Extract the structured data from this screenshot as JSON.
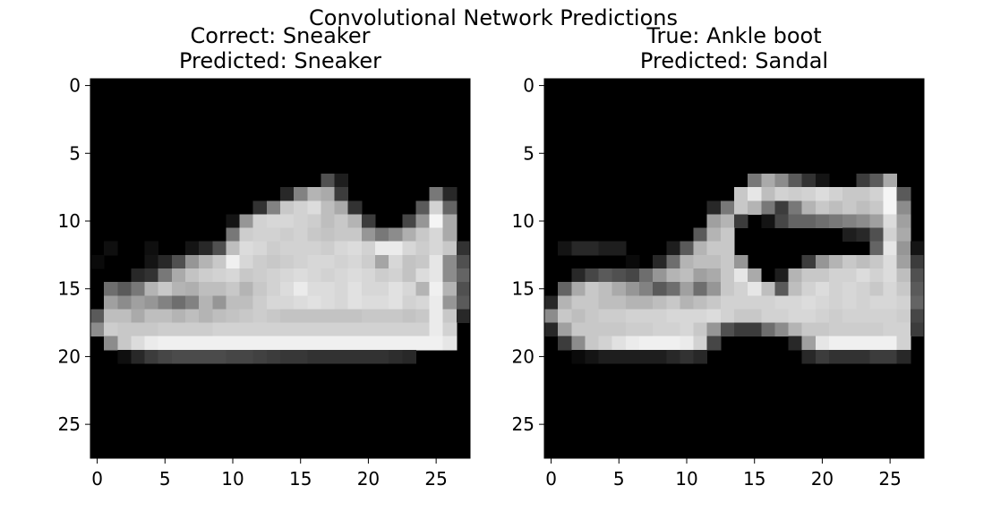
{
  "figure": {
    "suptitle": "Convolutional Network Predictions"
  },
  "chart_data": [
    {
      "type": "heatmap",
      "title_lines": [
        "Correct: Sneaker",
        "Predicted: Sneaker"
      ],
      "colormap": "gray",
      "image_shape": [
        28,
        28
      ],
      "xlim": [
        -0.5,
        27.5
      ],
      "ylim": [
        27.5,
        -0.5
      ],
      "xticks": [
        0,
        5,
        10,
        15,
        20,
        25
      ],
      "yticks": [
        0,
        5,
        10,
        15,
        20,
        25
      ],
      "xtick_labels": [
        "0",
        "5",
        "10",
        "15",
        "20",
        "25"
      ],
      "ytick_labels": [
        "0",
        "5",
        "10",
        "15",
        "20",
        "25"
      ],
      "pixels": {
        "7": {
          "17": 80,
          "18": 30
        },
        "8": {
          "14": 40,
          "15": 130,
          "16": 180,
          "17": 170,
          "18": 60,
          "25": 120,
          "26": 40
        },
        "9": {
          "12": 50,
          "13": 130,
          "14": 200,
          "15": 210,
          "16": 220,
          "17": 190,
          "18": 170,
          "19": 50,
          "24": 90,
          "25": 210,
          "26": 100
        },
        "10": {
          "10": 20,
          "11": 150,
          "12": 210,
          "13": 215,
          "14": 215,
          "15": 210,
          "16": 205,
          "17": 190,
          "18": 200,
          "19": 180,
          "20": 60,
          "23": 70,
          "24": 150,
          "25": 245,
          "26": 170
        },
        "11": {
          "10": 120,
          "11": 205,
          "12": 210,
          "13": 210,
          "14": 205,
          "15": 210,
          "16": 200,
          "17": 195,
          "18": 200,
          "19": 200,
          "20": 150,
          "21": 120,
          "22": 140,
          "23": 175,
          "24": 200,
          "25": 215,
          "26": 170
        },
        "12": {
          "1": 15,
          "4": 15,
          "7": 20,
          "8": 40,
          "9": 80,
          "10": 190,
          "11": 220,
          "12": 215,
          "13": 205,
          "14": 210,
          "15": 210,
          "16": 210,
          "17": 205,
          "18": 215,
          "19": 220,
          "20": 210,
          "21": 235,
          "22": 235,
          "23": 215,
          "24": 205,
          "25": 215,
          "26": 200,
          "27": 50
        },
        "13": {
          "0": 10,
          "4": 20,
          "5": 40,
          "6": 80,
          "7": 150,
          "8": 180,
          "9": 200,
          "10": 240,
          "11": 215,
          "12": 205,
          "13": 200,
          "14": 205,
          "15": 210,
          "16": 215,
          "17": 215,
          "18": 210,
          "19": 215,
          "20": 205,
          "21": 165,
          "22": 215,
          "23": 195,
          "24": 200,
          "25": 230,
          "26": 140,
          "27": 80
        },
        "14": {
          "3": 40,
          "4": 50,
          "5": 120,
          "6": 170,
          "7": 195,
          "8": 205,
          "9": 210,
          "10": 215,
          "11": 200,
          "12": 205,
          "13": 210,
          "14": 215,
          "15": 220,
          "16": 215,
          "17": 210,
          "18": 215,
          "19": 220,
          "20": 215,
          "21": 205,
          "22": 210,
          "23": 195,
          "24": 220,
          "25": 230,
          "26": 140,
          "27": 100
        },
        "15": {
          "1": 110,
          "2": 90,
          "3": 120,
          "4": 180,
          "5": 200,
          "6": 180,
          "7": 175,
          "8": 190,
          "9": 190,
          "10": 200,
          "11": 180,
          "12": 200,
          "13": 210,
          "14": 220,
          "15": 235,
          "16": 220,
          "17": 220,
          "18": 215,
          "19": 225,
          "20": 215,
          "21": 215,
          "22": 225,
          "23": 215,
          "24": 180,
          "25": 240,
          "26": 180,
          "27": 80
        },
        "16": {
          "1": 160,
          "2": 140,
          "3": 160,
          "4": 150,
          "5": 130,
          "6": 110,
          "7": 130,
          "8": 180,
          "9": 150,
          "10": 190,
          "11": 190,
          "12": 205,
          "13": 215,
          "14": 215,
          "15": 220,
          "16": 225,
          "17": 220,
          "18": 215,
          "19": 225,
          "20": 220,
          "21": 220,
          "22": 225,
          "23": 210,
          "24": 215,
          "25": 235,
          "26": 150,
          "27": 90
        },
        "17": {
          "0": 90,
          "1": 190,
          "2": 190,
          "3": 170,
          "4": 190,
          "5": 190,
          "6": 180,
          "7": 190,
          "8": 180,
          "9": 190,
          "10": 195,
          "11": 200,
          "12": 205,
          "13": 200,
          "14": 195,
          "15": 195,
          "16": 195,
          "17": 195,
          "18": 195,
          "19": 195,
          "20": 200,
          "21": 200,
          "22": 200,
          "23": 195,
          "24": 200,
          "25": 235,
          "26": 200,
          "27": 40
        },
        "18": {
          "0": 140,
          "1": 205,
          "2": 200,
          "3": 200,
          "4": 200,
          "5": 205,
          "6": 205,
          "7": 205,
          "8": 205,
          "9": 210,
          "10": 210,
          "11": 210,
          "12": 210,
          "13": 210,
          "14": 210,
          "15": 210,
          "16": 210,
          "17": 210,
          "18": 210,
          "19": 210,
          "20": 210,
          "21": 210,
          "22": 210,
          "23": 210,
          "24": 210,
          "25": 235,
          "26": 210
        },
        "19": {
          "1": 140,
          "2": 200,
          "3": 220,
          "4": 235,
          "5": 240,
          "6": 240,
          "7": 240,
          "8": 240,
          "9": 240,
          "10": 240,
          "11": 240,
          "12": 240,
          "13": 240,
          "14": 240,
          "15": 240,
          "16": 240,
          "17": 240,
          "18": 240,
          "19": 240,
          "20": 240,
          "21": 240,
          "22": 240,
          "23": 240,
          "24": 240,
          "25": 240,
          "26": 230
        },
        "20": {
          "2": 15,
          "3": 40,
          "4": 60,
          "5": 70,
          "6": 75,
          "7": 75,
          "8": 75,
          "9": 75,
          "10": 70,
          "11": 70,
          "12": 65,
          "13": 60,
          "14": 55,
          "15": 55,
          "16": 50,
          "17": 50,
          "18": 50,
          "19": 50,
          "20": 50,
          "21": 50,
          "22": 45,
          "23": 40
        }
      }
    },
    {
      "type": "heatmap",
      "title_lines": [
        "True: Ankle boot",
        "Predicted: Sandal"
      ],
      "colormap": "gray",
      "image_shape": [
        28,
        28
      ],
      "xlim": [
        -0.5,
        27.5
      ],
      "ylim": [
        27.5,
        -0.5
      ],
      "xticks": [
        0,
        5,
        10,
        15,
        20,
        25
      ],
      "yticks": [
        0,
        5,
        10,
        15,
        20,
        25
      ],
      "xtick_labels": [
        "0",
        "5",
        "10",
        "15",
        "20",
        "25"
      ],
      "ytick_labels": [
        "0",
        "5",
        "10",
        "15",
        "20",
        "25"
      ],
      "pixels": {
        "7": {
          "15": 120,
          "16": 170,
          "17": 140,
          "18": 90,
          "19": 50,
          "20": 20,
          "23": 60,
          "24": 90,
          "25": 170
        },
        "8": {
          "14": 200,
          "15": 230,
          "16": 190,
          "17": 210,
          "18": 205,
          "19": 210,
          "20": 220,
          "21": 210,
          "22": 200,
          "23": 200,
          "24": 210,
          "25": 245,
          "26": 90
        },
        "9": {
          "12": 40,
          "13": 120,
          "14": 200,
          "15": 180,
          "16": 120,
          "17": 60,
          "18": 120,
          "19": 180,
          "20": 200,
          "21": 190,
          "22": 200,
          "23": 190,
          "24": 200,
          "25": 245,
          "26": 140
        },
        "10": {
          "12": 160,
          "13": 180,
          "14": 60,
          "16": 20,
          "17": 70,
          "18": 100,
          "19": 100,
          "20": 110,
          "21": 120,
          "22": 130,
          "23": 140,
          "24": 160,
          "25": 220,
          "26": 160
        },
        "11": {
          "11": 90,
          "12": 180,
          "13": 200,
          "22": 30,
          "23": 40,
          "24": 80,
          "25": 210,
          "26": 170
        },
        "12": {
          "1": 20,
          "2": 40,
          "3": 40,
          "4": 30,
          "5": 30,
          "9": 30,
          "10": 90,
          "11": 180,
          "12": 200,
          "13": 200,
          "24": 100,
          "25": 230,
          "26": 150,
          "27": 20
        },
        "13": {
          "6": 10,
          "8": 40,
          "9": 110,
          "10": 180,
          "11": 190,
          "12": 190,
          "13": 200,
          "14": 150,
          "19": 60,
          "20": 150,
          "21": 180,
          "22": 200,
          "23": 190,
          "24": 200,
          "25": 220,
          "26": 160,
          "27": 60
        },
        "14": {
          "2": 40,
          "3": 70,
          "4": 90,
          "5": 80,
          "6": 70,
          "7": 110,
          "8": 150,
          "9": 180,
          "10": 190,
          "11": 160,
          "12": 170,
          "13": 200,
          "14": 230,
          "15": 170,
          "17": 30,
          "18": 180,
          "19": 200,
          "20": 200,
          "21": 210,
          "22": 210,
          "23": 220,
          "24": 210,
          "25": 220,
          "26": 190,
          "27": 80
        },
        "15": {
          "1": 100,
          "2": 170,
          "3": 200,
          "4": 190,
          "5": 170,
          "6": 150,
          "7": 130,
          "8": 90,
          "9": 110,
          "10": 160,
          "11": 110,
          "12": 150,
          "13": 200,
          "14": 210,
          "15": 230,
          "16": 190,
          "17": 90,
          "18": 190,
          "19": 210,
          "20": 220,
          "21": 210,
          "22": 215,
          "23": 210,
          "24": 200,
          "25": 215,
          "26": 200,
          "27": 90
        },
        "16": {
          "0": 40,
          "1": 180,
          "2": 200,
          "3": 200,
          "4": 190,
          "5": 190,
          "6": 180,
          "7": 180,
          "8": 190,
          "9": 200,
          "10": 180,
          "11": 190,
          "12": 200,
          "13": 210,
          "14": 210,
          "15": 210,
          "16": 210,
          "17": 215,
          "18": 215,
          "19": 220,
          "20": 215,
          "21": 210,
          "22": 215,
          "23": 210,
          "24": 215,
          "25": 215,
          "26": 210,
          "27": 100
        },
        "17": {
          "0": 140,
          "1": 200,
          "2": 190,
          "3": 200,
          "4": 205,
          "5": 205,
          "6": 210,
          "7": 210,
          "8": 210,
          "9": 215,
          "10": 215,
          "11": 215,
          "12": 220,
          "13": 210,
          "14": 200,
          "15": 200,
          "16": 210,
          "17": 210,
          "18": 215,
          "19": 215,
          "20": 210,
          "21": 205,
          "22": 210,
          "23": 210,
          "24": 210,
          "25": 210,
          "26": 205,
          "27": 70
        },
        "18": {
          "0": 40,
          "1": 160,
          "2": 200,
          "3": 200,
          "4": 200,
          "5": 200,
          "6": 205,
          "7": 205,
          "8": 210,
          "9": 210,
          "10": 215,
          "11": 200,
          "12": 150,
          "13": 80,
          "14": 60,
          "15": 60,
          "16": 110,
          "17": 140,
          "18": 180,
          "19": 200,
          "20": 200,
          "21": 205,
          "22": 205,
          "23": 205,
          "24": 205,
          "25": 210,
          "26": 210,
          "27": 60
        },
        "19": {
          "1": 60,
          "2": 140,
          "3": 200,
          "4": 210,
          "5": 225,
          "6": 235,
          "7": 240,
          "8": 240,
          "9": 240,
          "10": 235,
          "11": 210,
          "12": 70,
          "18": 40,
          "19": 160,
          "20": 230,
          "21": 240,
          "22": 240,
          "23": 240,
          "24": 240,
          "25": 240,
          "26": 210
        },
        "20": {
          "2": 10,
          "3": 20,
          "4": 30,
          "5": 30,
          "6": 30,
          "7": 30,
          "8": 30,
          "9": 40,
          "10": 50,
          "11": 40,
          "19": 40,
          "20": 60,
          "21": 50,
          "22": 50,
          "23": 50,
          "24": 60,
          "25": 60,
          "26": 40
        }
      }
    }
  ]
}
